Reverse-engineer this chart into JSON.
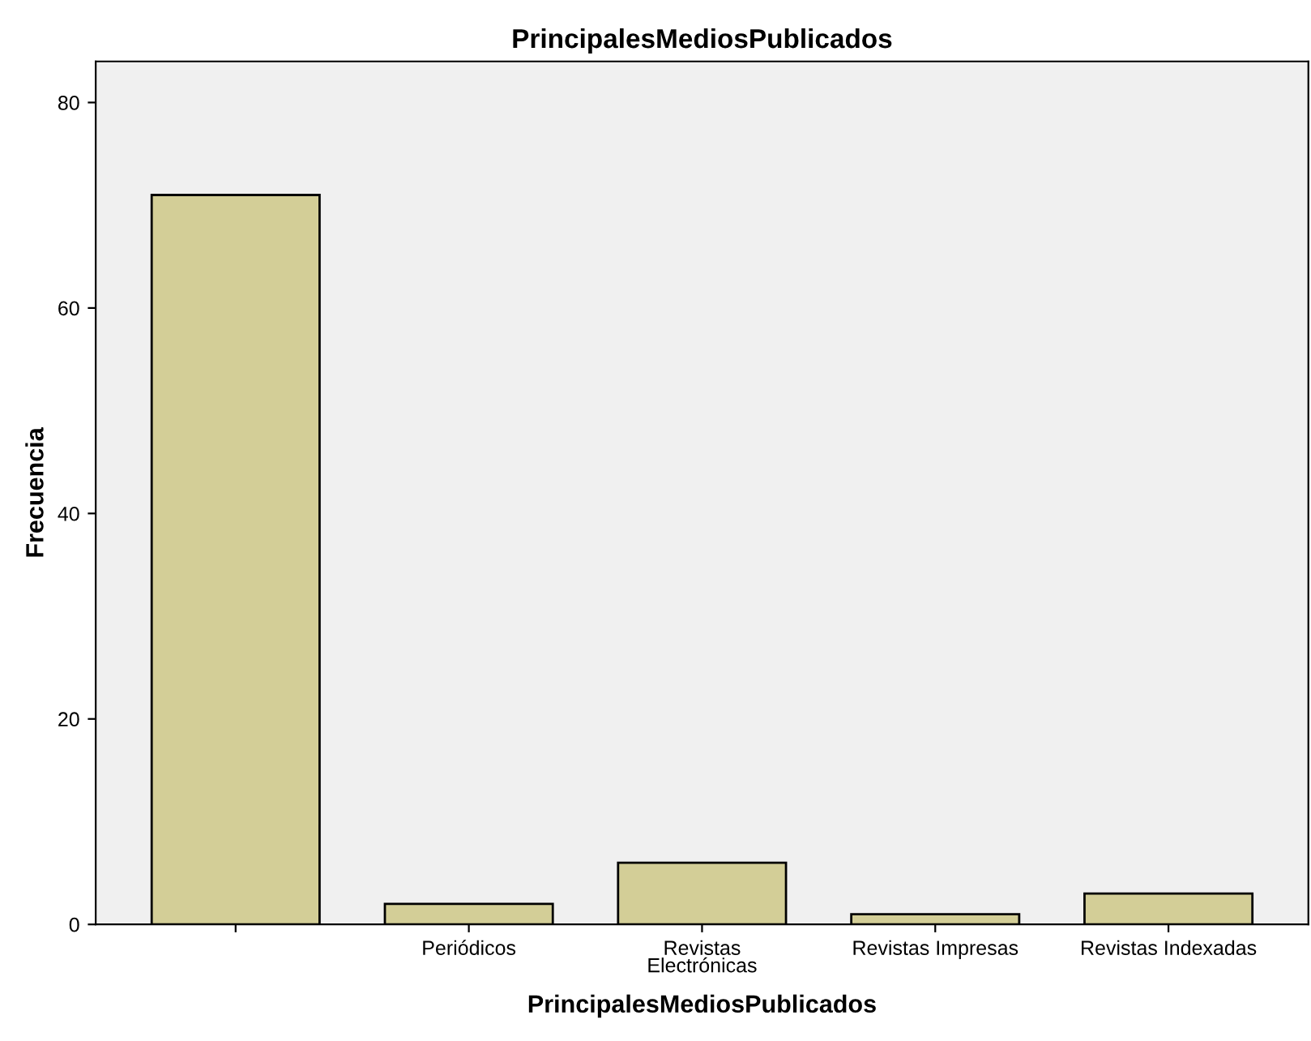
{
  "chart_data": {
    "type": "bar",
    "title": "PrincipalesMediosPublicados",
    "xlabel": "PrincipalesMediosPublicados",
    "ylabel": "Frecuencia",
    "categories": [
      null,
      "Periódicos",
      "Revistas\nElectrónicas",
      "Revistas Impresas",
      "Revistas Indexadas"
    ],
    "values": [
      71,
      2,
      6,
      1,
      3
    ],
    "color": "#d3ce97",
    "ylim": [
      0,
      84
    ],
    "yticks": [
      0,
      20,
      40,
      60,
      80
    ],
    "grid": false,
    "legend": false
  }
}
